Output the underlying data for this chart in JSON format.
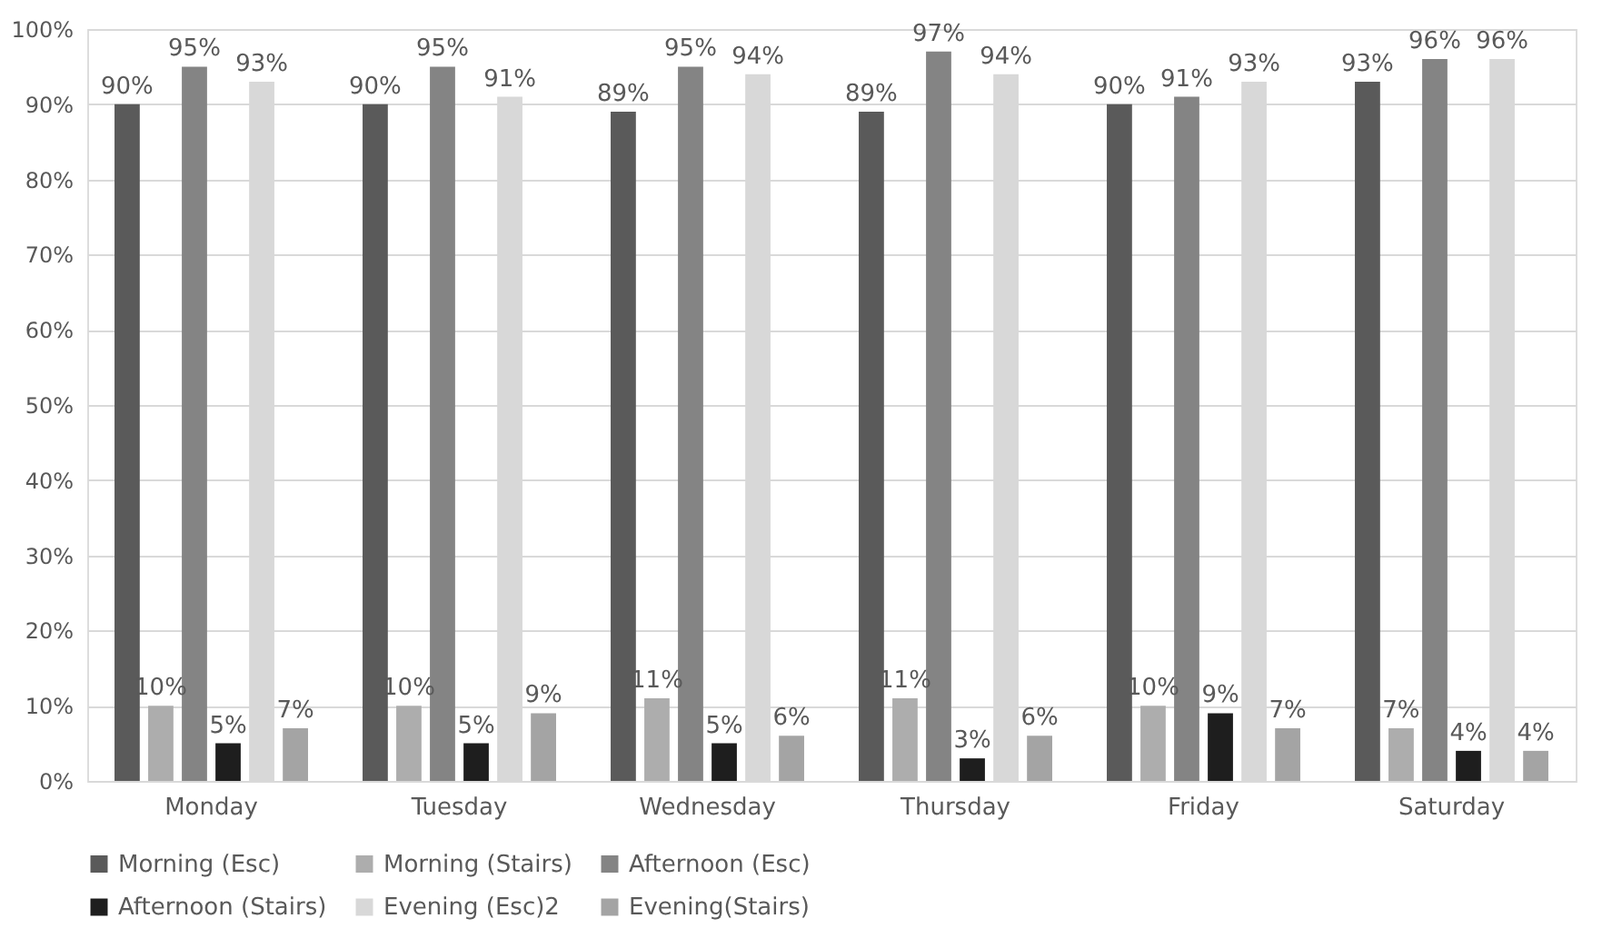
{
  "chart_data": {
    "type": "bar",
    "categories": [
      "Monday",
      "Tuesday",
      "Wednesday",
      "Thursday",
      "Friday",
      "Saturday"
    ],
    "series": [
      {
        "name": "Morning (Esc)",
        "color": "#5a5a5a",
        "values": [
          90,
          90,
          89,
          89,
          90,
          93
        ],
        "value_labels": [
          "90%",
          "90%",
          "89%",
          "89%",
          "90%",
          "93%"
        ]
      },
      {
        "name": "Morning (Stairs)",
        "color": "#adadad",
        "values": [
          10,
          10,
          11,
          11,
          10,
          7
        ],
        "value_labels": [
          "10%",
          "10%",
          "11%",
          "11%",
          "10%",
          "7%"
        ]
      },
      {
        "name": "Afternoon (Esc)",
        "color": "#848484",
        "values": [
          95,
          95,
          95,
          97,
          91,
          96
        ],
        "value_labels": [
          "95%",
          "95%",
          "95%",
          "97%",
          "91%",
          "96%"
        ]
      },
      {
        "name": "Afternoon (Stairs)",
        "color": "#1e1e1e",
        "values": [
          5,
          5,
          5,
          3,
          9,
          4
        ],
        "value_labels": [
          "5%",
          "5%",
          "5%",
          "3%",
          "9%",
          "4%"
        ]
      },
      {
        "name": "Evening (Esc)2",
        "color": "#d8d8d8",
        "values": [
          93,
          91,
          94,
          94,
          93,
          96
        ],
        "value_labels": [
          "93%",
          "91%",
          "94%",
          "94%",
          "93%",
          "96%"
        ]
      },
      {
        "name": "Evening(Stairs)",
        "color": "#a4a4a4",
        "values": [
          7,
          9,
          6,
          6,
          7,
          4
        ],
        "value_labels": [
          "7%",
          "9%",
          "6%",
          "6%",
          "7%",
          "4%"
        ]
      }
    ],
    "ylim": [
      0,
      100
    ],
    "yticks": [
      {
        "value": 0,
        "label": "0%"
      },
      {
        "value": 10,
        "label": "10%"
      },
      {
        "value": 20,
        "label": "20%"
      },
      {
        "value": 30,
        "label": "30%"
      },
      {
        "value": 40,
        "label": "40%"
      },
      {
        "value": 50,
        "label": "50%"
      },
      {
        "value": 60,
        "label": "60%"
      },
      {
        "value": 70,
        "label": "70%"
      },
      {
        "value": 80,
        "label": "80%"
      },
      {
        "value": 90,
        "label": "90%"
      },
      {
        "value": 100,
        "label": "100%"
      }
    ],
    "grid": "y",
    "legend": "bottom"
  }
}
